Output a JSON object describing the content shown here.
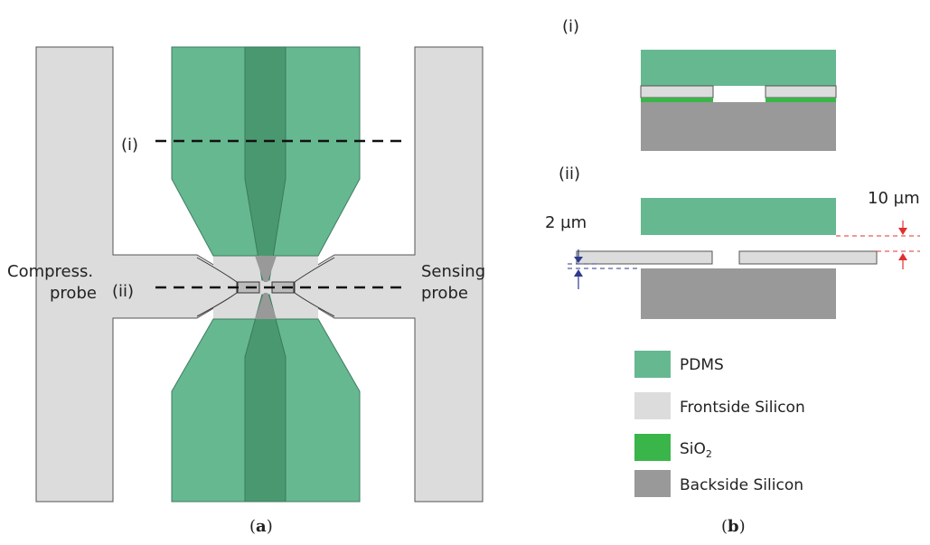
{
  "colors": {
    "pdms": "#66b891",
    "pdms_dark": "#4a9870",
    "frontside_silicon": "#dcdcdc",
    "sio2": "#3ab54a",
    "backside_silicon": "#999999",
    "blue_annotation": "#2e3a8c",
    "red_annotation": "#e03030"
  },
  "panel_a": {
    "caption_open": "(",
    "caption_letter": "a",
    "caption_close": ")",
    "section_i_label": "(i)",
    "section_ii_label": "(ii)",
    "left_probe_label_line1": "Compress.",
    "left_probe_label_line2": "probe",
    "right_probe_label_line1": "Sensing",
    "right_probe_label_line2": "probe"
  },
  "panel_b": {
    "caption_open": "(",
    "caption_letter": "b",
    "caption_close": ")",
    "section_i_label": "(i)",
    "section_ii_label": "(ii)",
    "gap_small_label": "2 µm",
    "gap_large_label": "10 µm"
  },
  "legend": [
    {
      "label": "PDMS",
      "sub": "",
      "color_key": "pdms"
    },
    {
      "label": "Frontside Silicon",
      "sub": "",
      "color_key": "frontside_silicon"
    },
    {
      "label": "SiO",
      "sub": "2",
      "color_key": "sio2"
    },
    {
      "label": "Backside Silicon",
      "sub": "",
      "color_key": "backside_silicon"
    }
  ]
}
